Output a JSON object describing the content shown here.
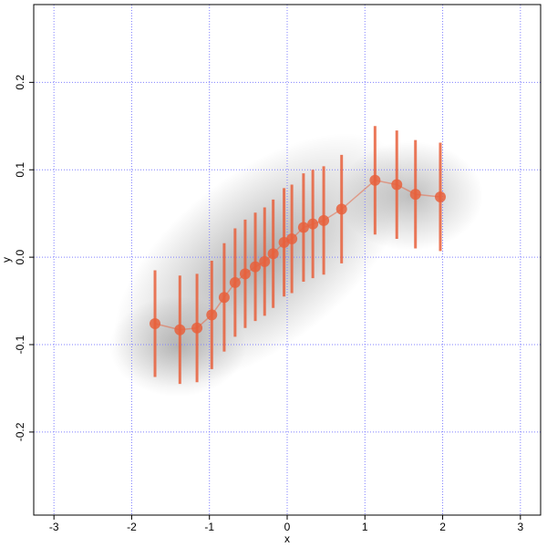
{
  "chart_data": {
    "type": "scatter",
    "x_label": "x",
    "y_label": "y",
    "x": [
      -1.7,
      -1.38,
      -1.16,
      -0.97,
      -0.81,
      -0.67,
      -0.54,
      -0.41,
      -0.29,
      -0.18,
      -0.04,
      0.06,
      0.21,
      0.33,
      0.47,
      0.7,
      1.13,
      1.41,
      1.65,
      1.97
    ],
    "values": [
      -0.076,
      -0.083,
      -0.081,
      -0.066,
      -0.046,
      -0.029,
      -0.019,
      -0.011,
      -0.005,
      0.004,
      0.017,
      0.021,
      0.034,
      0.038,
      0.042,
      0.055,
      0.088,
      0.083,
      0.072,
      0.069
    ],
    "errors": [
      0.061,
      0.062,
      0.062,
      0.062,
      0.062,
      0.062,
      0.062,
      0.062,
      0.062,
      0.062,
      0.062,
      0.062,
      0.062,
      0.062,
      0.062,
      0.062,
      0.062,
      0.062,
      0.062,
      0.062
    ],
    "color": "#e8603c",
    "xlim": [
      -3.26,
      3.26
    ],
    "ylim": [
      -0.295,
      0.289
    ],
    "xticks": [
      -3,
      -2,
      -1,
      0,
      1,
      2,
      3
    ],
    "yticks": [
      -0.2,
      -0.1,
      {
        "value": 0,
        "label": "0.0"
      },
      0.1,
      0.2
    ],
    "grid": true
  }
}
